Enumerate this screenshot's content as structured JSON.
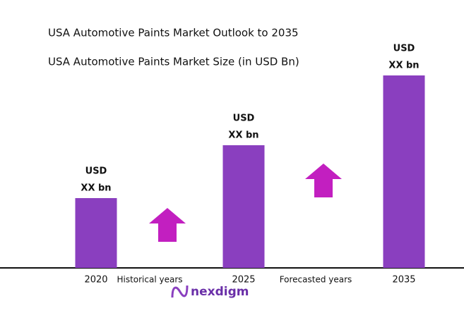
{
  "chart_data": {
    "type": "bar",
    "title": "USA Automotive Paints Market Outlook to 2035",
    "subtitle": "USA Automotive Paints Market Size (in USD Bn)",
    "categories": [
      "2020",
      "2025",
      "2035"
    ],
    "values": [
      99,
      174,
      273
    ],
    "value_labels": [
      [
        "USD",
        "XX bn"
      ],
      [
        "USD",
        "XX bn"
      ],
      [
        "USD",
        "XX bn"
      ]
    ],
    "color": "#8a3fbf",
    "ylim": [
      0,
      300
    ],
    "annotations": [
      "Historical years",
      "Forecasted years"
    ],
    "logo": "nexdigm"
  }
}
